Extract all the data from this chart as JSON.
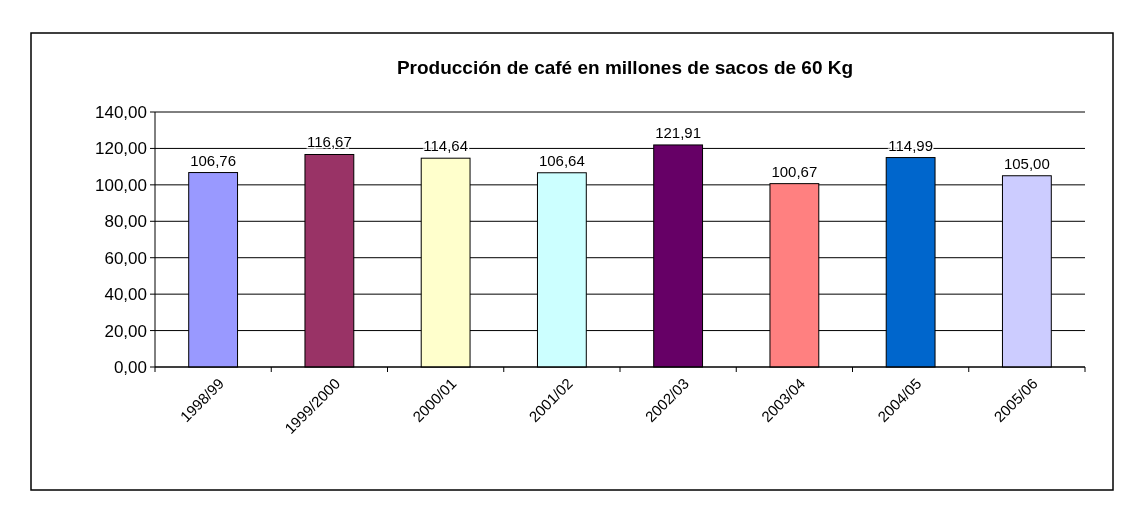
{
  "chart_data": {
    "type": "bar",
    "title": "Producción de café en millones de sacos de 60 Kg",
    "categories": [
      "1998/99",
      "1999/2000",
      "2000/01",
      "2001/02",
      "2002/03",
      "2003/04",
      "2004/05",
      "2005/06"
    ],
    "values": [
      106.76,
      116.67,
      114.64,
      106.64,
      121.91,
      100.67,
      114.99,
      105.0
    ],
    "value_labels": [
      "106,76",
      "116,67",
      "114,64",
      "106,64",
      "121,91",
      "100,67",
      "114,99",
      "105,00"
    ],
    "colors": [
      "#9999ff",
      "#993366",
      "#ffffcc",
      "#ccffff",
      "#660066",
      "#ff8080",
      "#0066cc",
      "#ccccff"
    ],
    "ylim": [
      0,
      140
    ],
    "yticks": [
      {
        "value": 0,
        "label": "0,00"
      },
      {
        "value": 20,
        "label": "20,00"
      },
      {
        "value": 40,
        "label": "40,00"
      },
      {
        "value": 60,
        "label": "60,00"
      },
      {
        "value": 80,
        "label": "80,00"
      },
      {
        "value": 100,
        "label": "100,00"
      },
      {
        "value": 120,
        "label": "120,00"
      },
      {
        "value": 140,
        "label": "140,00"
      }
    ],
    "grid": "y"
  }
}
